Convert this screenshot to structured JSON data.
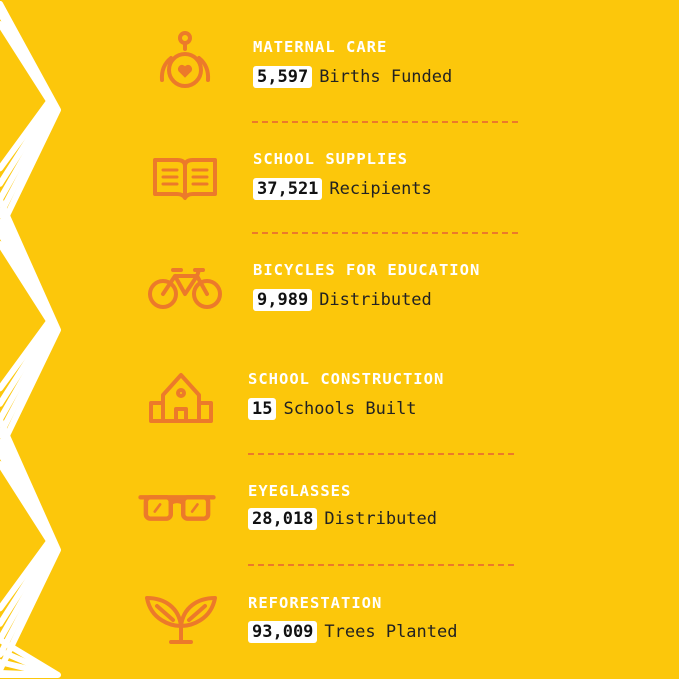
{
  "colors": {
    "background": "#fcc70b",
    "accent": "#ec7a2a",
    "title": "#ffffff"
  },
  "items": [
    {
      "icon": "mother-baby-heart-icon",
      "title": "MATERNAL CARE",
      "number": "5,597",
      "label": "Births Funded"
    },
    {
      "icon": "open-book-icon",
      "title": "SCHOOL SUPPLIES",
      "number": "37,521",
      "label": "Recipients"
    },
    {
      "icon": "bicycle-icon",
      "title": "BICYCLES FOR EDUCATION",
      "number": "9,989",
      "label": "Distributed"
    },
    {
      "icon": "school-building-icon",
      "title": "SCHOOL CONSTRUCTION",
      "number": "15",
      "label": "Schools Built"
    },
    {
      "icon": "eyeglasses-icon",
      "title": "EYEGLASSES",
      "number": "28,018",
      "label": "Distributed"
    },
    {
      "icon": "sprout-leaves-icon",
      "title": "REFORESTATION",
      "number": "93,009",
      "label": "Trees Planted"
    }
  ]
}
